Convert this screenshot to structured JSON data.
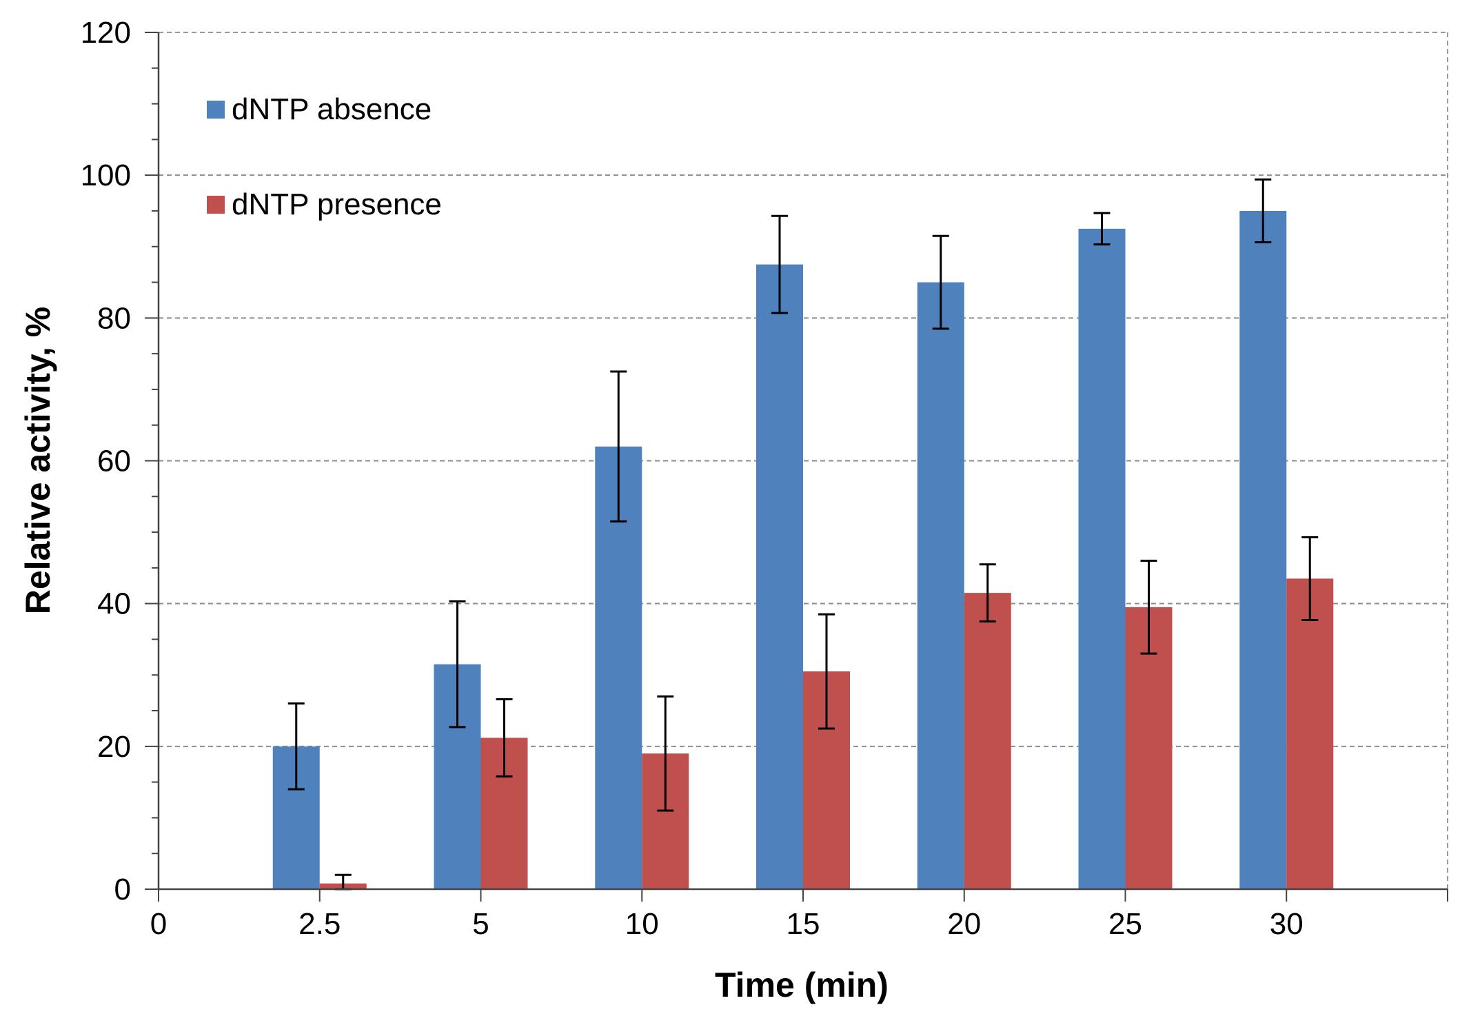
{
  "chart_data": {
    "type": "bar",
    "title": "",
    "xlabel": "Time (min)",
    "ylabel": "Relative activity, %",
    "x_tick_labels": [
      "0",
      "2.5",
      "5",
      "10",
      "15",
      "20",
      "25",
      "30"
    ],
    "categories": [
      "2.5",
      "5",
      "10",
      "15",
      "20",
      "25",
      "30"
    ],
    "y_ticks": [
      "0",
      "20",
      "40",
      "60",
      "80",
      "100",
      "120"
    ],
    "ylim": [
      0,
      120
    ],
    "grid": "horizontal dashed",
    "legend_position": "top-left",
    "error_bars": true,
    "series": [
      {
        "name": "dNTP absence",
        "color": "#4F81BD",
        "values": [
          20,
          31.5,
          62,
          87.5,
          85,
          92.5,
          95
        ],
        "errors": [
          6,
          8.8,
          10.5,
          6.8,
          6.5,
          2.2,
          4.4
        ]
      },
      {
        "name": "dNTP presence",
        "color": "#C0504D",
        "values": [
          0.8,
          21.2,
          19,
          30.5,
          41.5,
          39.5,
          43.5
        ],
        "errors": [
          1.2,
          5.4,
          8,
          8,
          4,
          6.5,
          5.8
        ]
      }
    ]
  }
}
